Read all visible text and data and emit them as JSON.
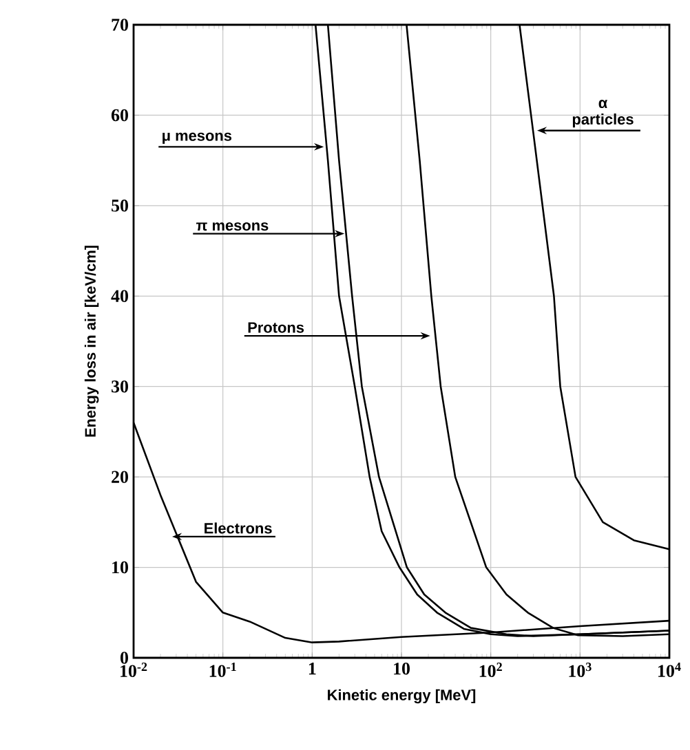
{
  "chart_data": {
    "type": "line",
    "xlabel": "Kinetic energy [MeV]",
    "ylabel": "Energy loss in air [keV/cm]",
    "log": "x",
    "grid": true,
    "xlim": [
      0.01,
      10000
    ],
    "ylim": [
      0,
      70
    ],
    "xticks": [
      {
        "value": 0.01,
        "label": "10$^{-2}$"
      },
      {
        "value": 0.1,
        "label": "10$^{-1}$"
      },
      {
        "value": 1,
        "label": "1"
      },
      {
        "value": 10,
        "label": "10"
      },
      {
        "value": 100,
        "label": "10$^{2}$"
      },
      {
        "value": 1000,
        "label": "10$^{3}$"
      },
      {
        "value": 10000,
        "label": "10$^{4}$"
      }
    ],
    "yticks": [
      0,
      10,
      20,
      30,
      40,
      50,
      60,
      70
    ],
    "series": [
      {
        "color": "#000000",
        "x": [
          0.01,
          0.02,
          0.05,
          0.1,
          0.2,
          0.5,
          1,
          2,
          10,
          100,
          1000,
          10000
        ],
        "values": [
          26,
          18,
          8.4,
          5.0,
          4.0,
          2.2,
          1.7,
          1.8,
          2.3,
          2.8,
          3.5,
          4.1
        ]
      },
      {
        "color": "#000000",
        "x": [
          1.09,
          1.5,
          2,
          3,
          4.4,
          6,
          9.5,
          15,
          25,
          50,
          100,
          200,
          1000,
          10000
        ],
        "values": [
          70,
          55,
          40,
          30,
          20,
          14,
          10,
          7,
          5,
          3.2,
          2.6,
          2.4,
          2.6,
          3.0
        ]
      },
      {
        "color": "#000000",
        "x": [
          1.5,
          2,
          2.8,
          3.6,
          5.6,
          11.5,
          18,
          31,
          60,
          150,
          300,
          1000,
          10000
        ],
        "values": [
          70,
          55,
          40,
          30,
          20,
          10,
          7,
          5,
          3.3,
          2.6,
          2.4,
          2.6,
          3.0
        ]
      },
      {
        "color": "#000000",
        "x": [
          11.4,
          16,
          21.6,
          27.5,
          40,
          89,
          150,
          260,
          500,
          950,
          3000,
          10000
        ],
        "values": [
          70,
          55,
          40,
          30,
          20,
          10,
          7,
          5,
          3.3,
          2.5,
          2.4,
          2.6
        ]
      },
      {
        "color": "#000000",
        "x": [
          210,
          300,
          510,
          600,
          890,
          1800,
          4000,
          10000
        ],
        "values": [
          70,
          58,
          40,
          30,
          20,
          15,
          13,
          12
        ]
      }
    ],
    "annotations": [
      {
        "text": "μ  mesons",
        "x": 1.35,
        "y": 56.5
      },
      {
        "text": "π  mesons",
        "x": 2.3,
        "y": 46.9
      },
      {
        "text": "Protons",
        "x": 21,
        "y": 35.6
      },
      {
        "text": "α particles",
        "x": 330,
        "y": 58.3
      },
      {
        "text": "Electrons",
        "x": 0.027,
        "y": 13.4
      }
    ]
  }
}
